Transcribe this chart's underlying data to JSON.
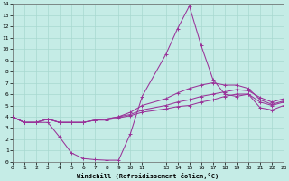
{
  "xlabel": "Windchill (Refroidissement éolien,°C)",
  "bg_color": "#c5ece6",
  "grid_color": "#a8d8d0",
  "line_color": "#993399",
  "xlim": [
    0,
    23
  ],
  "ylim": [
    0,
    14
  ],
  "xticks": [
    0,
    1,
    2,
    3,
    4,
    5,
    6,
    7,
    8,
    9,
    10,
    11,
    13,
    14,
    15,
    16,
    17,
    18,
    19,
    20,
    21,
    22,
    23
  ],
  "yticks": [
    0,
    1,
    2,
    3,
    4,
    5,
    6,
    7,
    8,
    9,
    10,
    11,
    12,
    13,
    14
  ],
  "line1_x": [
    0,
    1,
    2,
    3,
    4,
    5,
    6,
    7,
    8,
    9,
    10,
    11,
    13,
    14,
    15,
    16,
    17,
    18,
    19,
    20,
    21,
    22,
    23
  ],
  "line1_y": [
    4.0,
    3.5,
    3.5,
    3.5,
    2.2,
    0.8,
    0.3,
    0.2,
    0.15,
    0.15,
    2.5,
    5.8,
    9.5,
    11.8,
    13.8,
    10.3,
    7.3,
    6.0,
    5.8,
    6.0,
    4.8,
    4.6,
    5.0
  ],
  "line2_x": [
    0,
    1,
    2,
    3,
    4,
    5,
    6,
    7,
    8,
    9,
    10,
    11,
    13,
    14,
    15,
    16,
    17,
    18,
    19,
    20,
    21,
    22,
    23
  ],
  "line2_y": [
    4.0,
    3.5,
    3.5,
    3.8,
    3.5,
    3.5,
    3.5,
    3.7,
    3.7,
    3.9,
    4.1,
    4.4,
    4.7,
    4.9,
    5.0,
    5.3,
    5.5,
    5.8,
    6.0,
    6.0,
    5.3,
    5.0,
    5.3
  ],
  "line3_x": [
    0,
    1,
    2,
    3,
    4,
    5,
    6,
    7,
    8,
    9,
    10,
    11,
    13,
    14,
    15,
    16,
    17,
    18,
    19,
    20,
    21,
    22,
    23
  ],
  "line3_y": [
    4.0,
    3.5,
    3.5,
    3.8,
    3.5,
    3.5,
    3.5,
    3.7,
    3.8,
    4.0,
    4.2,
    4.6,
    5.0,
    5.3,
    5.5,
    5.8,
    6.0,
    6.2,
    6.4,
    6.3,
    5.7,
    5.3,
    5.6
  ],
  "line4_x": [
    0,
    1,
    2,
    3,
    4,
    5,
    6,
    7,
    8,
    9,
    10,
    11,
    13,
    14,
    15,
    16,
    17,
    18,
    19,
    20,
    21,
    22,
    23
  ],
  "line4_y": [
    4.0,
    3.5,
    3.5,
    3.8,
    3.5,
    3.5,
    3.5,
    3.7,
    3.8,
    4.0,
    4.4,
    5.0,
    5.6,
    6.1,
    6.5,
    6.8,
    7.0,
    6.8,
    6.8,
    6.5,
    5.5,
    5.1,
    5.4
  ]
}
